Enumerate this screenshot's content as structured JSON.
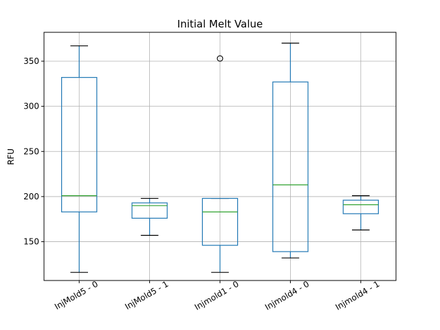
{
  "chart_data": {
    "type": "box",
    "title": "Initial Melt Value",
    "ylabel": "RFU",
    "xlabel": "",
    "ylim": [
      107,
      382
    ],
    "yticks": [
      150,
      200,
      250,
      300,
      350
    ],
    "grid": true,
    "categories": [
      "InjMold5 - 0",
      "InjMold5 - 1",
      "Injmold1 - 0",
      "Injmold4 - 0",
      "Injmold4 - 1"
    ],
    "boxes": [
      {
        "whisker_low": 116,
        "q1": 183,
        "median": 201,
        "q3": 332,
        "whisker_high": 367,
        "outliers": []
      },
      {
        "whisker_low": 157,
        "q1": 176,
        "median": 190,
        "q3": 193,
        "whisker_high": 198,
        "outliers": []
      },
      {
        "whisker_low": 116,
        "q1": 146,
        "median": 183,
        "q3": 198,
        "whisker_high": 198,
        "outliers": [
          353
        ]
      },
      {
        "whisker_low": 132,
        "q1": 139,
        "median": 213,
        "q3": 327,
        "whisker_high": 370,
        "outliers": []
      },
      {
        "whisker_low": 163,
        "q1": 181,
        "median": 191,
        "q3": 196,
        "whisker_high": 201,
        "outliers": []
      }
    ],
    "colors": {
      "box": "#1f77b4",
      "median": "#2ca02c",
      "whisker_cap": "#000000",
      "grid": "#b0b0b0",
      "outlier": "#000000"
    }
  }
}
